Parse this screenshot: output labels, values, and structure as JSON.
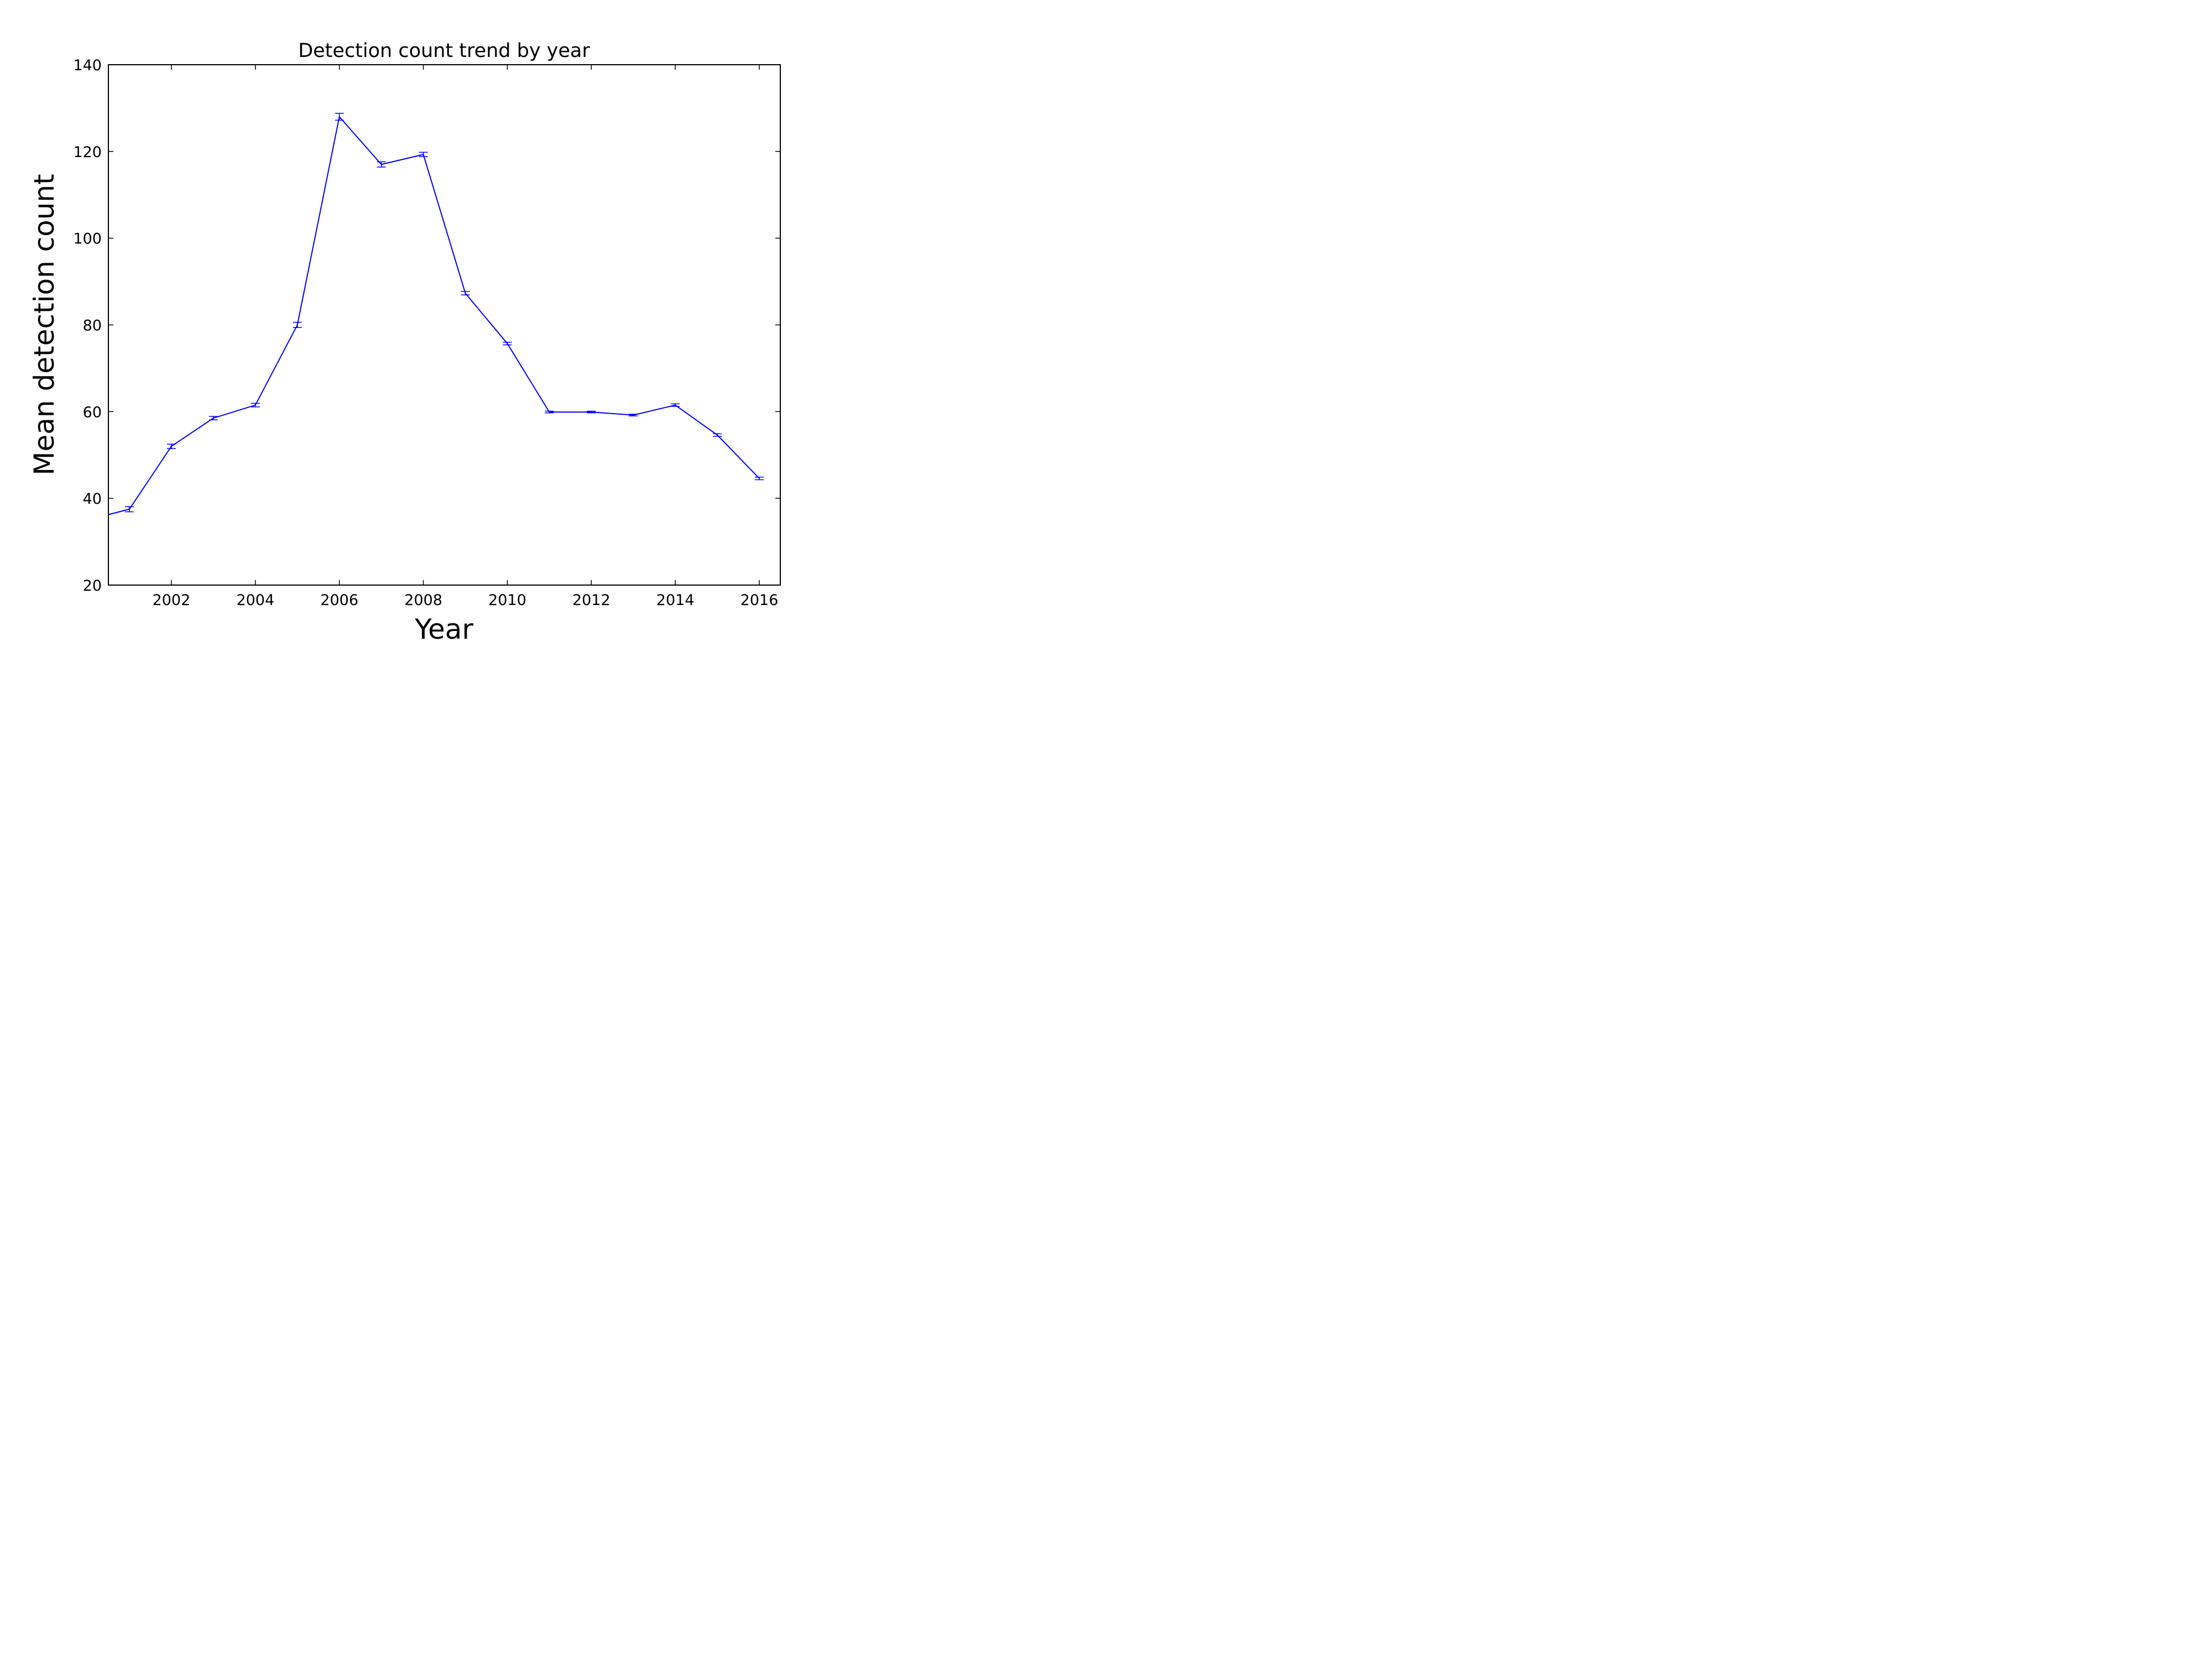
{
  "chart_data": {
    "type": "line",
    "title": "Detection count trend by year",
    "xlabel": "Year",
    "ylabel": "Mean detection count",
    "xlim": [
      2000.5,
      2016.5
    ],
    "ylim": [
      20,
      140
    ],
    "xticks": [
      2002,
      2004,
      2006,
      2008,
      2010,
      2012,
      2014,
      2016
    ],
    "yticks": [
      20,
      40,
      60,
      80,
      100,
      120,
      140
    ],
    "grid": false,
    "series": [
      {
        "color": "#0000ff",
        "error_bars": true,
        "points": [
          {
            "x": 2000,
            "y": 35.0,
            "err": 0.6
          },
          {
            "x": 2001,
            "y": 37.5,
            "err": 0.6
          },
          {
            "x": 2002,
            "y": 52.0,
            "err": 0.5
          },
          {
            "x": 2003,
            "y": 58.5,
            "err": 0.4
          },
          {
            "x": 2004,
            "y": 61.5,
            "err": 0.4
          },
          {
            "x": 2005,
            "y": 80.0,
            "err": 0.6
          },
          {
            "x": 2006,
            "y": 128.0,
            "err": 0.8
          },
          {
            "x": 2007,
            "y": 117.0,
            "err": 0.6
          },
          {
            "x": 2008,
            "y": 119.3,
            "err": 0.5
          },
          {
            "x": 2009,
            "y": 87.3,
            "err": 0.4
          },
          {
            "x": 2010,
            "y": 75.7,
            "err": 0.3
          },
          {
            "x": 2011,
            "y": 59.9,
            "err": 0.2
          },
          {
            "x": 2012,
            "y": 59.9,
            "err": 0.2
          },
          {
            "x": 2013,
            "y": 59.2,
            "err": 0.2
          },
          {
            "x": 2014,
            "y": 61.5,
            "err": 0.3
          },
          {
            "x": 2015,
            "y": 54.6,
            "err": 0.3
          },
          {
            "x": 2016,
            "y": 44.6,
            "err": 0.3
          }
        ]
      }
    ]
  }
}
